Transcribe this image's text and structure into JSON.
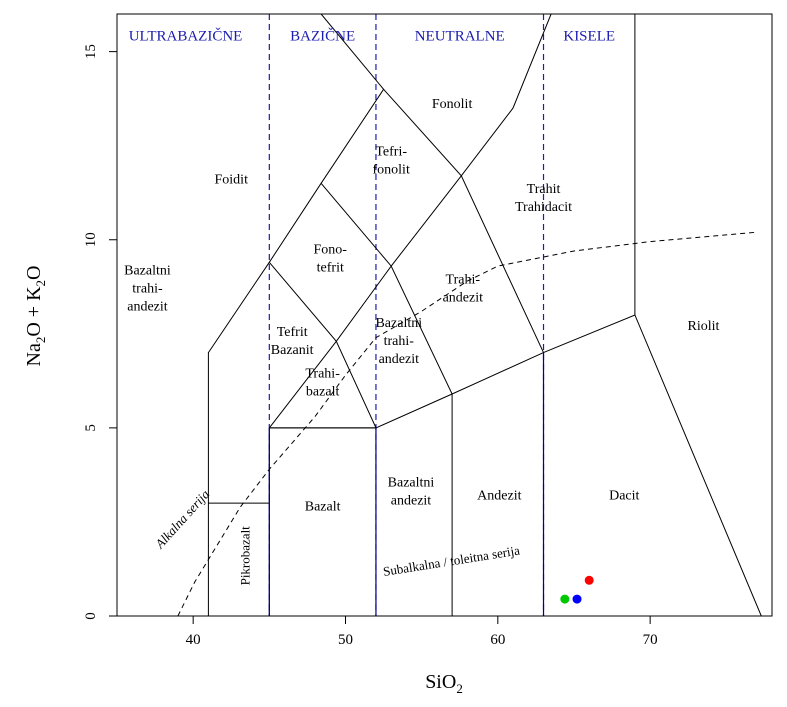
{
  "chart_data": {
    "type": "scatter",
    "subtype": "TAS classification diagram",
    "xlabel_base": "SiO",
    "xlabel_sub": "2",
    "ylabel_parts": [
      "Na",
      "2",
      "O + K",
      "2",
      "O"
    ],
    "xlim": [
      35,
      78
    ],
    "ylim": [
      0,
      16
    ],
    "x_ticks": [
      {
        "value": 40,
        "label": "40"
      },
      {
        "value": 50,
        "label": "50"
      },
      {
        "value": 60,
        "label": "60"
      },
      {
        "value": 70,
        "label": "70"
      }
    ],
    "y_ticks": [
      {
        "value": 0,
        "label": "0"
      },
      {
        "value": 5,
        "label": "5"
      },
      {
        "value": 10,
        "label": "10"
      },
      {
        "value": 15,
        "label": "15"
      }
    ],
    "zone_labels": [
      {
        "text": "ULTRABAZIČNE",
        "x": 39.5,
        "y": 15.3
      },
      {
        "text": "BAZIČNE",
        "x": 48.5,
        "y": 15.3
      },
      {
        "text": "NEUTRALNE",
        "x": 57.5,
        "y": 15.3
      },
      {
        "text": "KISELE",
        "x": 66.0,
        "y": 15.3
      }
    ],
    "zone_boundaries": [
      45,
      52,
      63
    ],
    "field_lines": [
      [
        [
          41,
          0
        ],
        [
          41,
          7
        ],
        [
          45,
          9.4
        ],
        [
          48.4,
          11.5
        ],
        [
          52.5,
          14
        ],
        [
          48.4,
          16
        ]
      ],
      [
        [
          45,
          0
        ],
        [
          45,
          5
        ],
        [
          49.4,
          7.3
        ],
        [
          53,
          9.3
        ],
        [
          57.6,
          11.7
        ],
        [
          61,
          13.5
        ],
        [
          63.5,
          16
        ]
      ],
      [
        [
          52,
          0
        ],
        [
          52,
          5
        ],
        [
          57,
          5.9
        ],
        [
          63,
          7
        ],
        [
          69,
          8
        ],
        [
          77.3,
          0
        ]
      ],
      [
        [
          57,
          0
        ],
        [
          57,
          5.9
        ]
      ],
      [
        [
          63,
          0
        ],
        [
          63,
          7
        ]
      ],
      [
        [
          69,
          8
        ],
        [
          69,
          16
        ]
      ],
      [
        [
          45,
          5
        ],
        [
          52,
          5
        ],
        [
          49.4,
          7.3
        ],
        [
          45,
          9.4
        ]
      ],
      [
        [
          57,
          5.9
        ],
        [
          53,
          9.3
        ],
        [
          48.4,
          11.5
        ]
      ],
      [
        [
          52.5,
          14
        ],
        [
          57.6,
          11.7
        ],
        [
          63,
          7
        ]
      ],
      [
        [
          41,
          3
        ],
        [
          45,
          3
        ]
      ],
      [
        [
          45,
          5
        ],
        [
          52,
          5
        ]
      ],
      [
        [
          52,
          5
        ],
        [
          52,
          0
        ]
      ]
    ],
    "alkali_line": [
      [
        39,
        0
      ],
      [
        40.1,
        0.9
      ],
      [
        43.1,
        2.9
      ],
      [
        45,
        3.9
      ],
      [
        48,
        5.3
      ],
      [
        50,
        6.4
      ],
      [
        52,
        7.4
      ],
      [
        55,
        8.1
      ],
      [
        58,
        8.9
      ],
      [
        60,
        9.3
      ],
      [
        65,
        9.7
      ],
      [
        70,
        9.95
      ],
      [
        77,
        10.2
      ]
    ],
    "field_labels": [
      {
        "lines": [
          "Fonolit"
        ],
        "x": 57,
        "y": 13.5
      },
      {
        "lines": [
          "Tefri-",
          "fonolit"
        ],
        "x": 53,
        "y": 12
      },
      {
        "lines": [
          "Trahit",
          "Trahidacit"
        ],
        "x": 63,
        "y": 11
      },
      {
        "lines": [
          "Foidit"
        ],
        "x": 42.5,
        "y": 11.5
      },
      {
        "lines": [
          "Fono-",
          "tefrit"
        ],
        "x": 49,
        "y": 9.4
      },
      {
        "lines": [
          "Bazaltni",
          "trahi-",
          "andezit"
        ],
        "x": 37,
        "y": 8.6
      },
      {
        "lines": [
          "Trahi-",
          "andezit"
        ],
        "x": 57.7,
        "y": 8.6
      },
      {
        "lines": [
          "Riolit"
        ],
        "x": 73.5,
        "y": 7.6
      },
      {
        "lines": [
          "Tefrit",
          "Bazanit"
        ],
        "x": 46.5,
        "y": 7.2
      },
      {
        "lines": [
          "Bazaltni",
          "trahi-",
          "andezit"
        ],
        "x": 53.5,
        "y": 7.2
      },
      {
        "lines": [
          "Trahi-",
          "bazalt"
        ],
        "x": 48.5,
        "y": 6.1
      },
      {
        "lines": [
          "Bazalt"
        ],
        "x": 48.5,
        "y": 2.8
      },
      {
        "lines": [
          "Bazaltni",
          "andezit"
        ],
        "x": 54.3,
        "y": 3.2
      },
      {
        "lines": [
          "Andezit"
        ],
        "x": 60.1,
        "y": 3.1
      },
      {
        "lines": [
          "Dacit"
        ],
        "x": 68.3,
        "y": 3.1
      }
    ],
    "rotated_labels": [
      {
        "text": "Pikrobazalt",
        "x": 43.7,
        "y": 1.6,
        "angle": -90,
        "italic": false
      },
      {
        "text": "Alkalna serija",
        "x": 39.5,
        "y": 2.5,
        "angle": -48,
        "italic": true
      },
      {
        "text": "Subalkalna / toleitna serija",
        "x": 57,
        "y": 1.35,
        "angle": -9,
        "italic": false
      }
    ],
    "points": [
      {
        "x": 66.0,
        "y": 0.95,
        "color": "#ff0000"
      },
      {
        "x": 64.4,
        "y": 0.45,
        "color": "#00c800"
      },
      {
        "x": 65.2,
        "y": 0.45,
        "color": "#0000ff"
      }
    ],
    "colors": {
      "field_line": "#000000",
      "boundary_blue": "#00008b",
      "zone_label": "#1c1cb0",
      "dashed_divider": "#1c1cb0"
    }
  }
}
